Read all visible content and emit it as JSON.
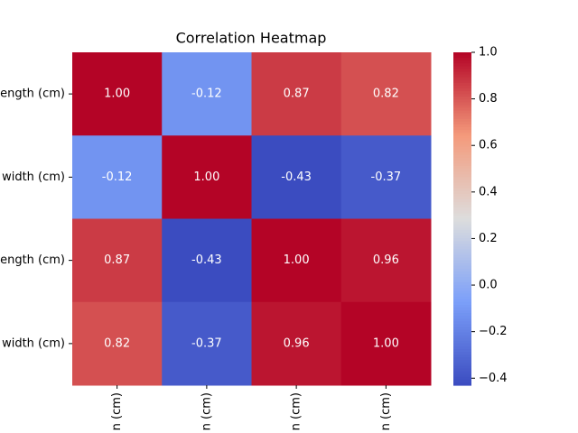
{
  "chart_data": {
    "type": "heatmap",
    "title": "Correlation Heatmap",
    "x_labels": [
      "n (cm)",
      "n (cm)",
      "n (cm)",
      "n (cm)"
    ],
    "y_labels": [
      "ength (cm)",
      "width (cm)",
      "ength (cm)",
      "width (cm)"
    ],
    "values": [
      [
        1.0,
        -0.12,
        0.87,
        0.82
      ],
      [
        -0.12,
        1.0,
        -0.43,
        -0.37
      ],
      [
        0.87,
        -0.43,
        1.0,
        0.96
      ],
      [
        0.82,
        -0.37,
        0.96,
        1.0
      ]
    ],
    "value_labels": [
      [
        "1.00",
        "-0.12",
        "0.87",
        "0.82"
      ],
      [
        "-0.12",
        "1.00",
        "-0.43",
        "-0.37"
      ],
      [
        "0.87",
        "-0.43",
        "1.00",
        "0.96"
      ],
      [
        "0.82",
        "-0.37",
        "0.96",
        "1.00"
      ]
    ],
    "colormap": "coolwarm",
    "clim": [
      -0.43,
      1.0
    ],
    "cticks": [
      {
        "value": -0.4,
        "label": "−0.4"
      },
      {
        "value": -0.2,
        "label": "−0.2"
      },
      {
        "value": 0,
        "label": "0.0"
      },
      0.2,
      0.4,
      0.6,
      0.8,
      {
        "value": 1,
        "label": "1.0"
      }
    ]
  }
}
